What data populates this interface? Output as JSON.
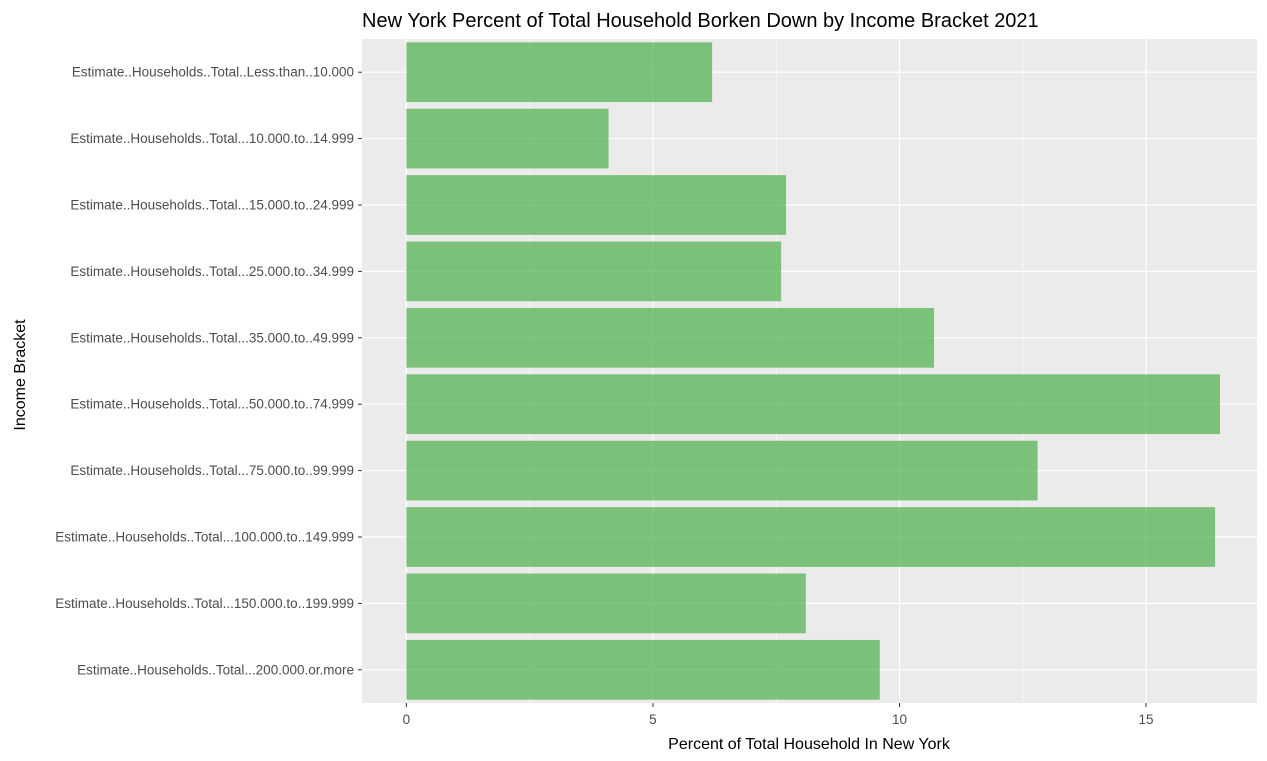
{
  "chart_data": {
    "type": "bar",
    "orientation": "horizontal",
    "title": "New York Percent of Total Household Borken Down by Income Bracket 2021",
    "xlabel": "Percent of Total Household In New York",
    "ylabel": "Income Bracket",
    "xlim": [
      -0.9,
      17.25
    ],
    "xticks": [
      0,
      5,
      10,
      15
    ],
    "xtick_labels": [
      "0",
      "5",
      "10",
      "15"
    ],
    "grid": true,
    "legend": "none",
    "colors": {
      "bar": "#4daf4a",
      "bar_opacity": 0.7,
      "panel": "#ebebeb",
      "grid": "#ffffff"
    },
    "categories": [
      "Estimate..Households..Total..Less.than..10.000",
      "Estimate..Households..Total...10.000.to..14.999",
      "Estimate..Households..Total...15.000.to..24.999",
      "Estimate..Households..Total...25.000.to..34.999",
      "Estimate..Households..Total...35.000.to..49.999",
      "Estimate..Households..Total...50.000.to..74.999",
      "Estimate..Households..Total...75.000.to..99.999",
      "Estimate..Households..Total...100.000.to..149.999",
      "Estimate..Households..Total...150.000.to..199.999",
      "Estimate..Households..Total...200.000.or.more"
    ],
    "values": [
      6.2,
      4.1,
      7.7,
      7.6,
      10.7,
      16.5,
      12.8,
      16.4,
      8.1,
      9.6
    ]
  }
}
